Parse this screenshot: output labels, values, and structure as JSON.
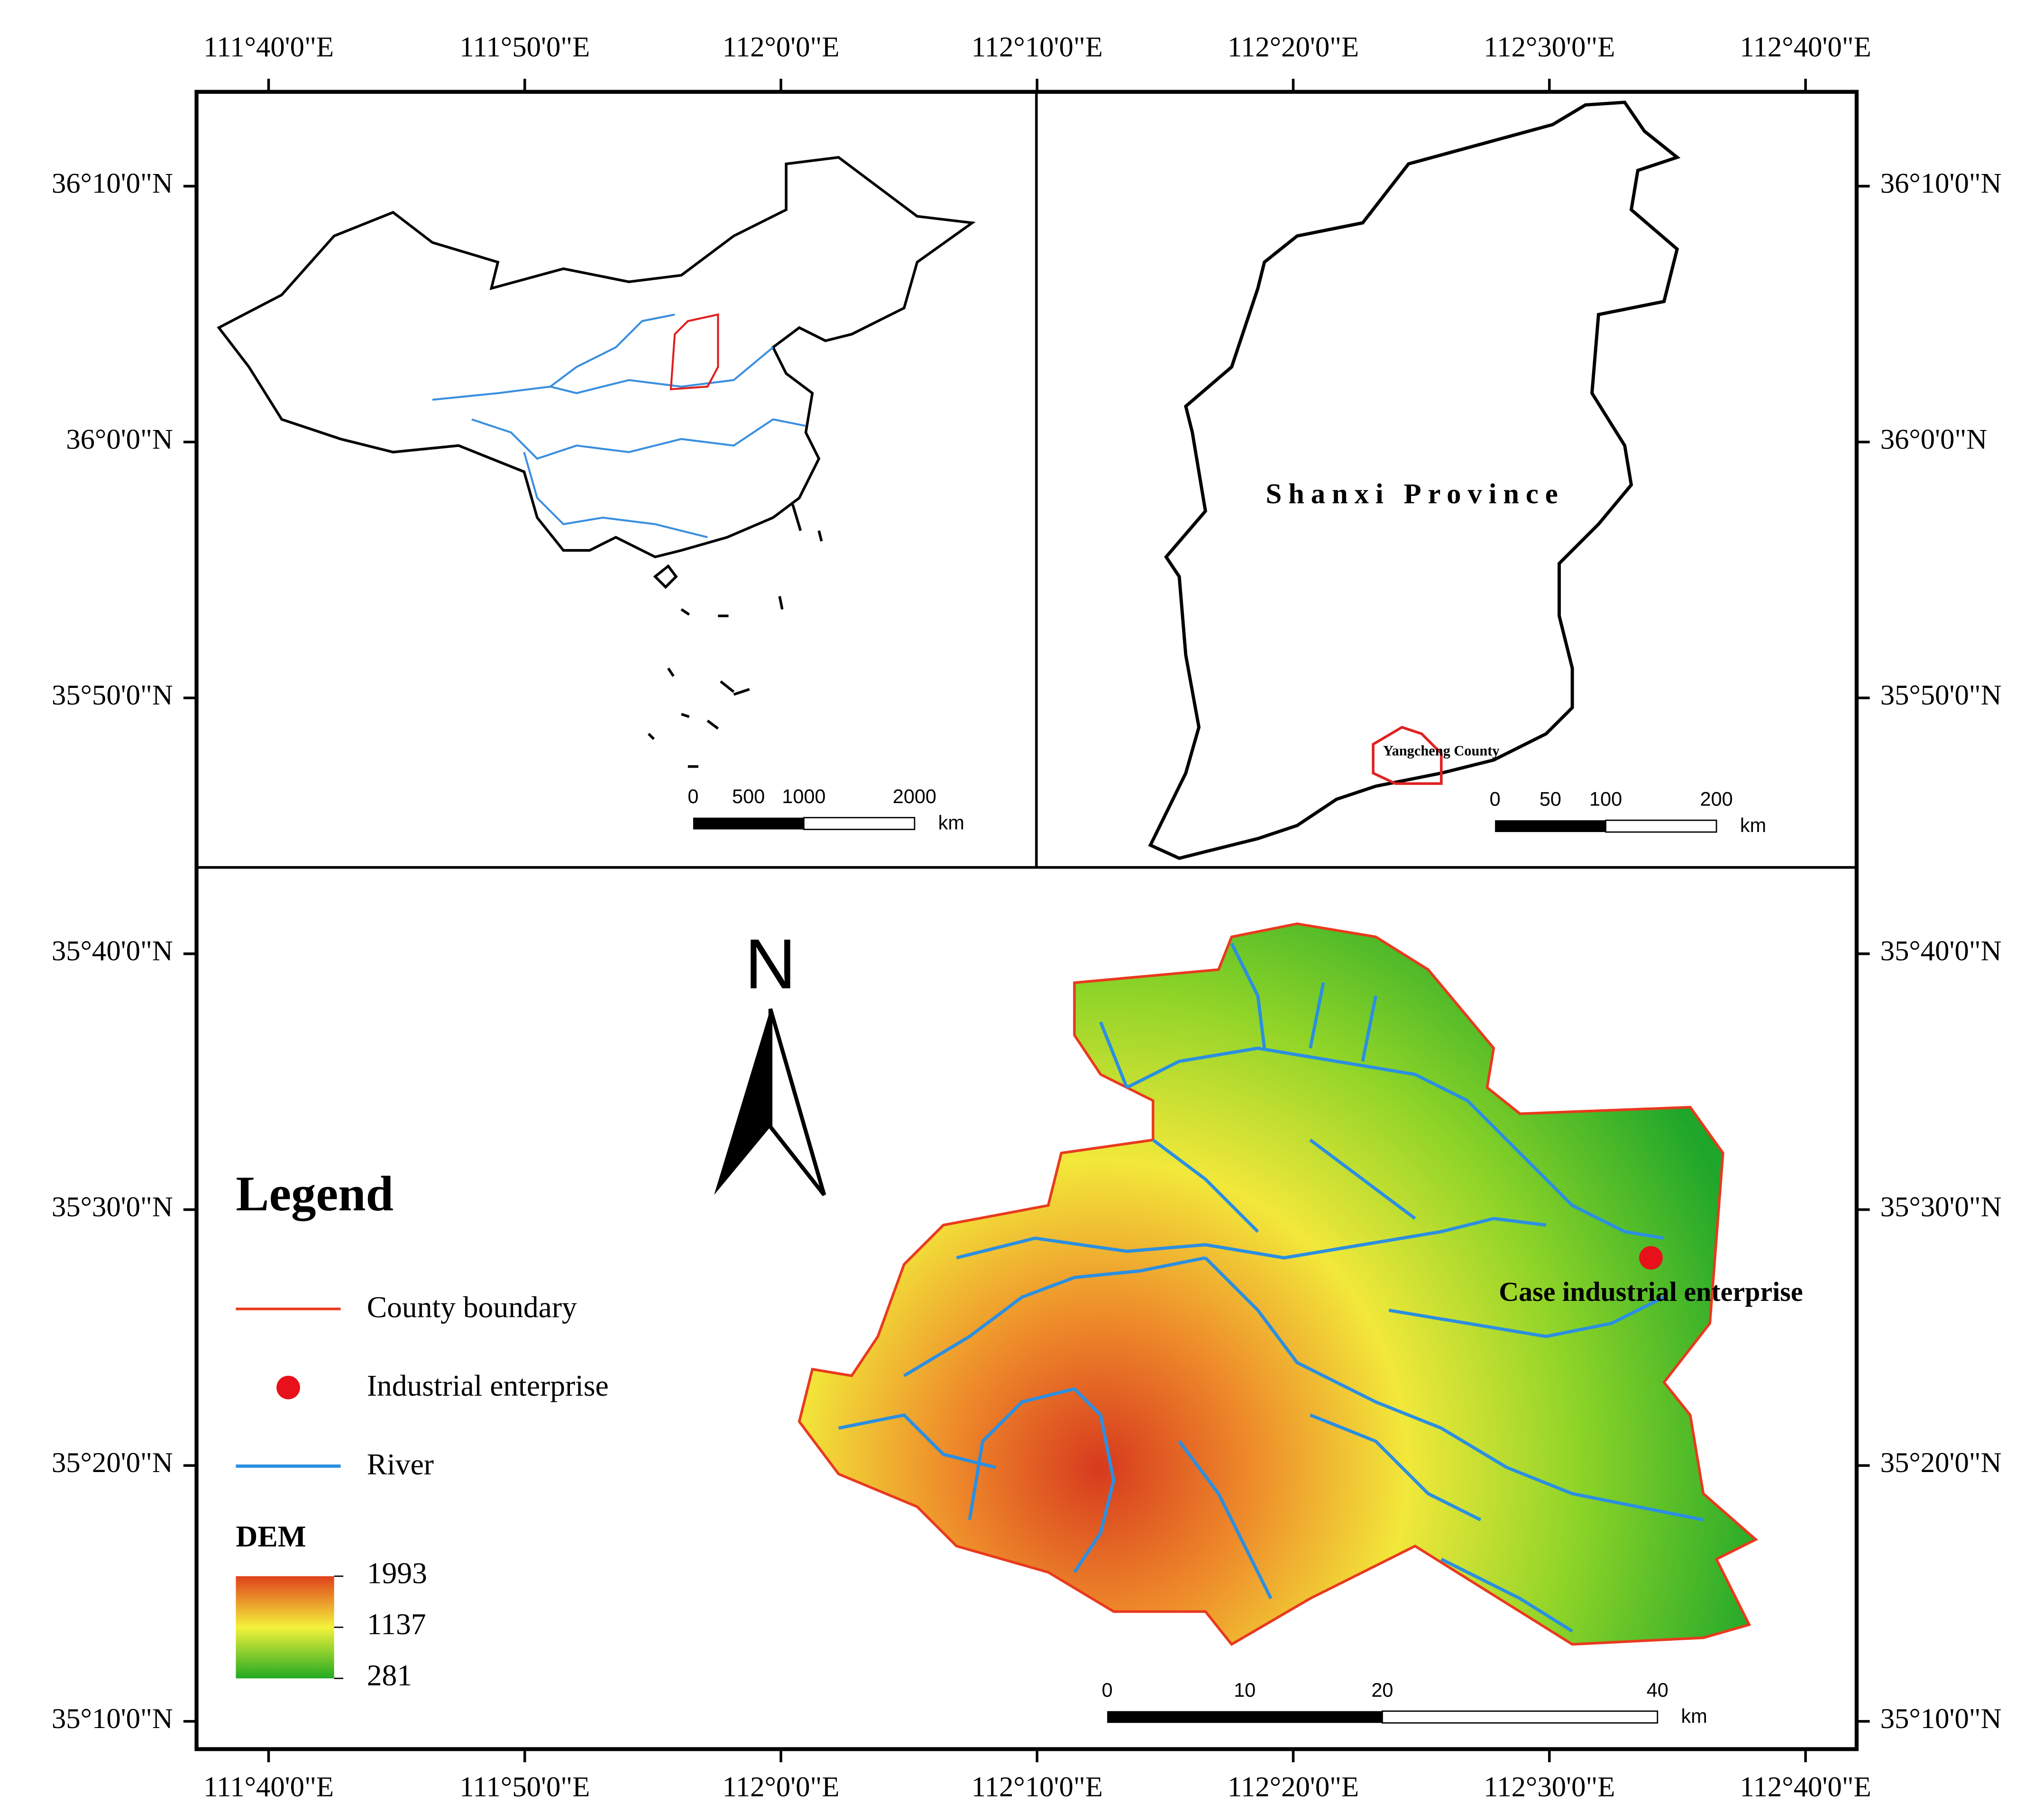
{
  "frame": {
    "x_labels": [
      "111°40'0\"E",
      "111°50'0\"E",
      "112°0'0\"E",
      "112°10'0\"E",
      "112°20'0\"E",
      "112°30'0\"E",
      "112°40'0\"E"
    ],
    "y_labels": [
      "36°10'0\"N",
      "36°0'0\"N",
      "35°50'0\"N",
      "35°40'0\"N",
      "35°30'0\"N",
      "35°20'0\"N",
      "35°10'0\"N"
    ]
  },
  "inset_china": {
    "scale_bar": {
      "labels": [
        0,
        500,
        1000,
        2000
      ],
      "unit": "km"
    }
  },
  "inset_shanxi": {
    "province_label": "Shanxi Province",
    "county_label": "Yangcheng County",
    "scale_bar": {
      "labels": [
        0,
        50,
        100,
        200
      ],
      "unit": "km"
    }
  },
  "main_map": {
    "north_label": "N",
    "enterprise_label": "Case industrial enterprise",
    "scale_bar": {
      "labels": [
        0,
        10,
        20,
        40
      ],
      "unit": "km"
    }
  },
  "legend": {
    "title": "Legend",
    "items": [
      "County boundary",
      "Industrial enterprise",
      "River"
    ],
    "dem_title": "DEM",
    "dem_labels": [
      1993,
      1137,
      281
    ]
  }
}
